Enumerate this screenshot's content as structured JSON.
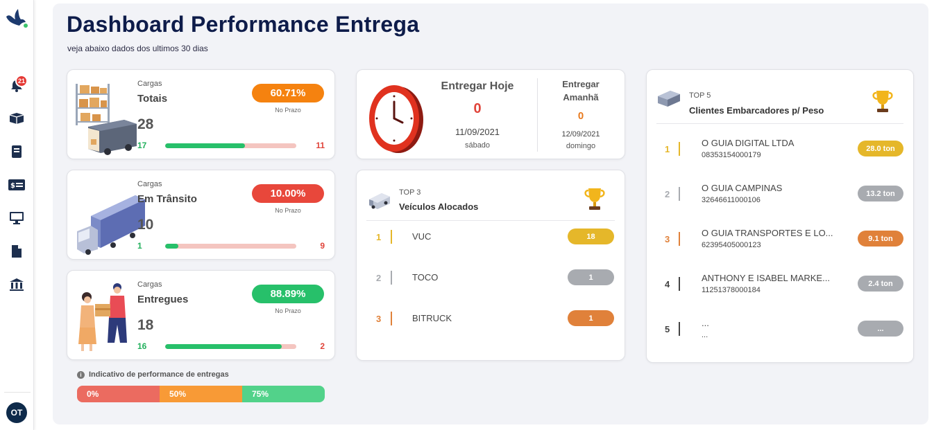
{
  "page": {
    "title": "Dashboard Performance Entrega",
    "subtitle": "veja abaixo dados dos ultimos 30 dias"
  },
  "sidebar": {
    "notifications_count": "21",
    "avatar_initials": "OT",
    "icons": [
      "bird-logo-icon",
      "bell-icon",
      "box-icon",
      "book-icon",
      "money-card-icon",
      "monitor-icon",
      "file-icon",
      "bank-icon"
    ]
  },
  "metrics": [
    {
      "label": "Cargas",
      "name": "Totais",
      "value": "28",
      "percent": "60.71%",
      "percent_fraction": 0.6071,
      "percent_caption": "No Prazo",
      "on_time": "17",
      "late": "11",
      "pill_color": "#f5820f"
    },
    {
      "label": "Cargas",
      "name": "Em Trânsito",
      "value": "10",
      "percent": "10.00%",
      "percent_fraction": 0.1,
      "percent_caption": "No Prazo",
      "on_time": "1",
      "late": "9",
      "pill_color": "#e8473b"
    },
    {
      "label": "Cargas",
      "name": "Entregues",
      "value": "18",
      "percent": "88.89%",
      "percent_fraction": 0.8889,
      "percent_caption": "No Prazo",
      "on_time": "16",
      "late": "2",
      "pill_color": "#27c06a"
    }
  ],
  "legend": {
    "title": "Indicativo de performance de entregas",
    "segments": [
      {
        "label": "0%",
        "color": "#eb6b60"
      },
      {
        "label": "50%",
        "color": "#f89a36"
      },
      {
        "label": "75%",
        "color": "#52d28a"
      }
    ]
  },
  "delivery": {
    "today_title": "Entregar Hoje",
    "today_count": "0",
    "today_date": "11/09/2021",
    "today_weekday": "sábado",
    "tomorrow_title_line1": "Entregar",
    "tomorrow_title_line2": "Amanhã",
    "tomorrow_count": "0",
    "tomorrow_date": "12/09/2021",
    "tomorrow_weekday": "domingo"
  },
  "vehicles": {
    "top_label": "TOP 3",
    "title": "Veículos Alocados",
    "items": [
      {
        "pos": "1",
        "name": "VUC",
        "value": "18",
        "color": "#e5b72a"
      },
      {
        "pos": "2",
        "name": "TOCO",
        "value": "1",
        "color": "#a8abb0"
      },
      {
        "pos": "3",
        "name": "BITRUCK",
        "value": "1",
        "color": "#e0813a"
      }
    ]
  },
  "clients": {
    "top_label": "TOP 5",
    "title": "Clientes Embarcadores p/ Peso",
    "items": [
      {
        "pos": "1",
        "name": "O GUIA DIGITAL LTDA",
        "code": "08353154000179",
        "value": "28.0 ton",
        "color": "#e5b72a"
      },
      {
        "pos": "2",
        "name": "O GUIA CAMPINAS",
        "code": "32646611000106",
        "value": "13.2 ton",
        "color": "#a8abb0"
      },
      {
        "pos": "3",
        "name": "O GUIA TRANSPORTES E LO...",
        "code": "62395405000123",
        "value": "9.1 ton",
        "color": "#e0813a"
      },
      {
        "pos": "4",
        "name": "ANTHONY E ISABEL MARKE...",
        "code": "11251378000184",
        "value": "2.4 ton",
        "color": "#a8abb0"
      },
      {
        "pos": "5",
        "name": "...",
        "code": "...",
        "value": "...",
        "color": "#a8abb0"
      }
    ]
  }
}
